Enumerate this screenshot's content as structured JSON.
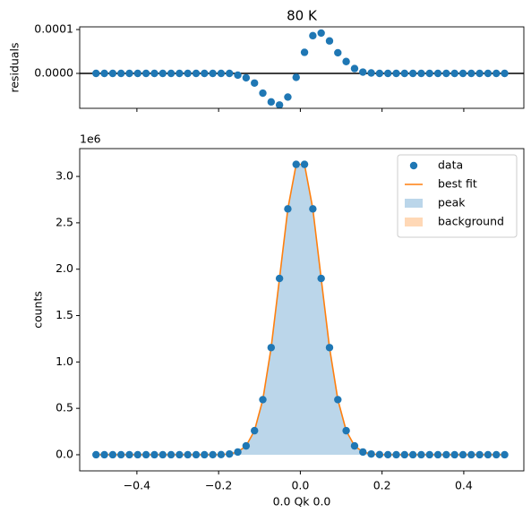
{
  "chart_data": [
    {
      "type": "scatter",
      "title": "80 K",
      "y_label": "residuals",
      "xtick_labels": false,
      "x": [
        -0.5,
        -0.4796,
        -0.4592,
        -0.4388,
        -0.4184,
        -0.398,
        -0.3776,
        -0.3571,
        -0.3367,
        -0.3163,
        -0.2959,
        -0.2755,
        -0.2551,
        -0.2347,
        -0.2143,
        -0.1939,
        -0.1735,
        -0.1531,
        -0.1327,
        -0.1122,
        -0.0918,
        -0.0714,
        -0.051,
        -0.0306,
        -0.0102,
        0.0102,
        0.0306,
        0.051,
        0.0714,
        0.0918,
        0.1122,
        0.1327,
        0.1531,
        0.1735,
        0.1939,
        0.2143,
        0.2347,
        0.2551,
        0.2755,
        0.2959,
        0.3163,
        0.3367,
        0.3571,
        0.3776,
        0.398,
        0.4184,
        0.4388,
        0.4592,
        0.4796,
        0.5
      ],
      "values": [
        0,
        0,
        0,
        0,
        0,
        0,
        0,
        0,
        0,
        0,
        0,
        0,
        0,
        0,
        0,
        0,
        0,
        -4e-06,
        -1e-05,
        -2.2e-05,
        -4.5e-05,
        -6.5e-05,
        -7.2e-05,
        -5.4e-05,
        -9e-06,
        4.8e-05,
        8.6e-05,
        9.2e-05,
        7.4e-05,
        4.7e-05,
        2.7e-05,
        1.1e-05,
        3e-06,
        1e-06,
        0,
        0,
        0,
        0,
        0,
        0,
        0,
        0,
        0,
        0,
        0,
        0,
        0,
        0,
        0,
        0
      ],
      "color": "#1f77b4",
      "reference_line": 0,
      "xlim": [
        -0.54,
        0.547
      ],
      "xticks": [
        -0.4,
        -0.2,
        0,
        0.2,
        0.4
      ],
      "ylim": [
        -7.96e-05,
        0.0001061
      ],
      "yticks": [
        {
          "value": 0,
          "label": "0.0000"
        },
        0.0001
      ]
    },
    {
      "type": "fit",
      "x_label": "0.0 Qk 0.0",
      "y_label": "counts",
      "offset_label": "1e6",
      "legend": "upper right",
      "x": [
        -0.5,
        -0.4796,
        -0.4592,
        -0.4388,
        -0.4184,
        -0.398,
        -0.3776,
        -0.3571,
        -0.3367,
        -0.3163,
        -0.2959,
        -0.2755,
        -0.2551,
        -0.2347,
        -0.2143,
        -0.1939,
        -0.1735,
        -0.1531,
        -0.1327,
        -0.1122,
        -0.0918,
        -0.0714,
        -0.051,
        -0.0306,
        -0.0102,
        0.0102,
        0.0306,
        0.051,
        0.0714,
        0.0918,
        0.1122,
        0.1327,
        0.1531,
        0.1735,
        0.1939,
        0.2143,
        0.2347,
        0.2551,
        0.2755,
        0.2959,
        0.3163,
        0.3367,
        0.3571,
        0.3776,
        0.398,
        0.4184,
        0.4388,
        0.4592,
        0.4796,
        0.5
      ],
      "series": [
        {
          "name": "data",
          "kind": "scatter",
          "color": "#1f77b4",
          "values": [
            0,
            0,
            0,
            0,
            0,
            0,
            0,
            0,
            0,
            0,
            0,
            0,
            0,
            0,
            0.0003,
            0.0018,
            0.0079,
            0.0297,
            0.095,
            0.259,
            0.594,
            1.155,
            1.9,
            2.65,
            3.13,
            3.13,
            2.65,
            1.9,
            1.155,
            0.594,
            0.259,
            0.095,
            0.0297,
            0.0079,
            0.0018,
            0.0003,
            0,
            0,
            0,
            0,
            0,
            0,
            0,
            0,
            0,
            0,
            0,
            0,
            0,
            0
          ]
        },
        {
          "name": "best fit",
          "kind": "line",
          "color": "#ff7f0e",
          "values": [
            0,
            0,
            0,
            0,
            0,
            0,
            0,
            0,
            0,
            0,
            0,
            0,
            0,
            0,
            0.0003,
            0.0018,
            0.0079,
            0.0297,
            0.095,
            0.259,
            0.594,
            1.155,
            1.9,
            2.65,
            3.13,
            3.13,
            2.65,
            1.9,
            1.155,
            0.594,
            0.259,
            0.095,
            0.0297,
            0.0079,
            0.0018,
            0.0003,
            0,
            0,
            0,
            0,
            0,
            0,
            0,
            0,
            0,
            0,
            0,
            0,
            0,
            0
          ]
        },
        {
          "name": "peak",
          "kind": "area",
          "color": "#bbd6ea",
          "values": [
            0,
            0,
            0,
            0,
            0,
            0,
            0,
            0,
            0,
            0,
            0,
            0,
            0,
            0,
            0.0003,
            0.0018,
            0.0079,
            0.0297,
            0.095,
            0.259,
            0.594,
            1.155,
            1.9,
            2.65,
            3.13,
            3.13,
            2.65,
            1.9,
            1.155,
            0.594,
            0.259,
            0.095,
            0.0297,
            0.0079,
            0.0018,
            0.0003,
            0,
            0,
            0,
            0,
            0,
            0,
            0,
            0,
            0,
            0,
            0,
            0,
            0,
            0
          ]
        },
        {
          "name": "background",
          "kind": "area",
          "color": "#ffd8b6",
          "values": [
            0,
            0,
            0,
            0,
            0,
            0,
            0,
            0,
            0,
            0,
            0,
            0,
            0,
            0,
            0,
            0,
            0,
            0,
            0,
            0,
            0,
            0,
            0,
            0,
            0,
            0,
            0,
            0,
            0,
            0,
            0,
            0,
            0,
            0,
            0,
            0,
            0,
            0,
            0,
            0,
            0,
            0,
            0,
            0,
            0,
            0,
            0,
            0,
            0,
            0
          ]
        }
      ],
      "xlim": [
        -0.54,
        0.547
      ],
      "xticks": [
        {
          "value": -0.4,
          "label": "−0.4"
        },
        {
          "value": -0.2,
          "label": "−0.2"
        },
        {
          "value": 0,
          "label": "0.0"
        },
        0.2,
        0.4
      ],
      "ylim": [
        -0.174,
        3.3
      ],
      "yticks": [
        {
          "value": 0,
          "label": "0.0"
        },
        0.5,
        {
          "value": 1,
          "label": "1.0"
        },
        1.5,
        {
          "value": 2,
          "label": "2.0"
        },
        2.5,
        {
          "value": 3,
          "label": "3.0"
        }
      ]
    }
  ]
}
